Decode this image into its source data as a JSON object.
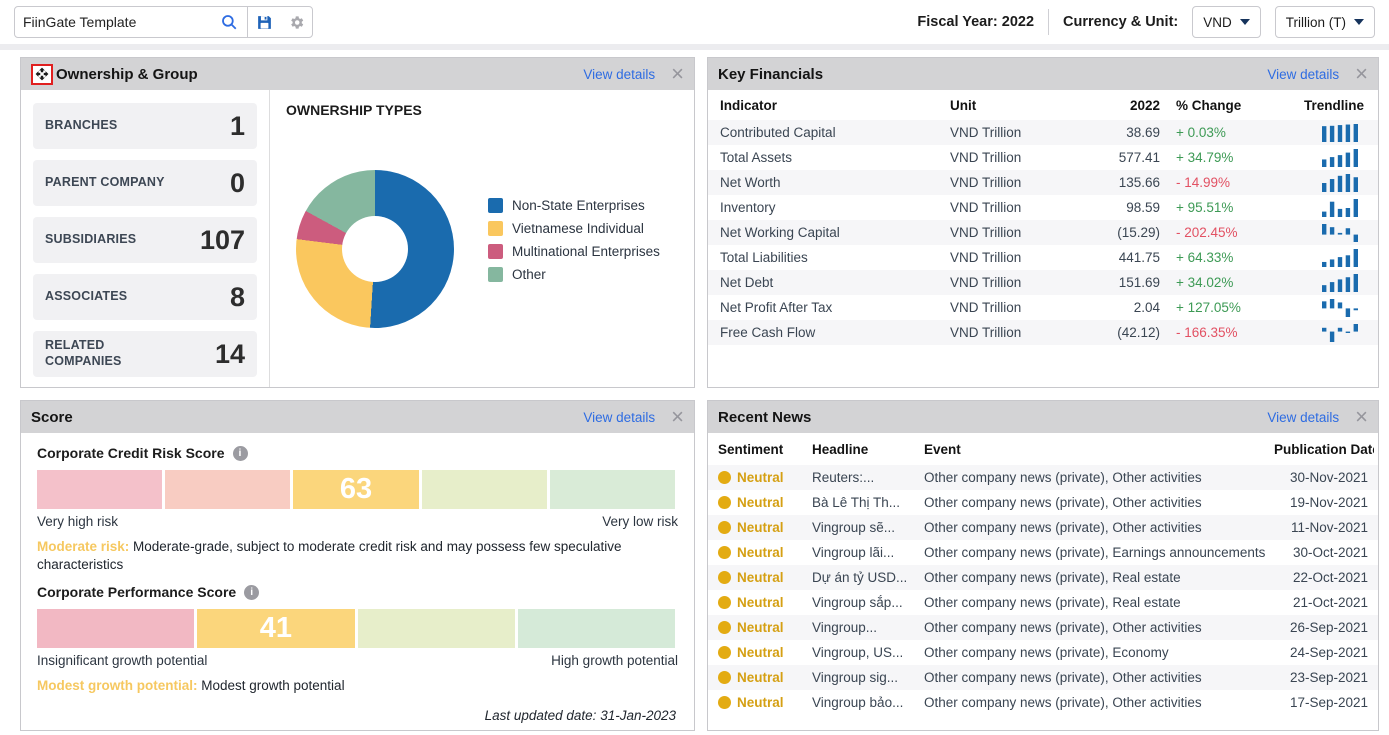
{
  "toolbar": {
    "template_name": "FiinGate Template",
    "fiscal_year_label": "Fiscal Year: 2022",
    "currency_unit_label": "Currency & Unit:",
    "currency_value": "VND",
    "unit_value": "Trillion (T)"
  },
  "colors": {
    "accent_blue": "#2e6ce2",
    "spark_blue": "#1a6bae",
    "positive": "#3d9a55",
    "negative": "#e25163",
    "sentiment_neutral": "#d5a013",
    "panel_header_bg": "#d3d3d5",
    "highlight_box_red": "#e01f1f"
  },
  "ownership": {
    "title": "Ownership & Group",
    "view_details": "View details",
    "chart_title": "OWNERSHIP TYPES",
    "stats": [
      {
        "label": "BRANCHES",
        "value": "1"
      },
      {
        "label": "PARENT COMPANY",
        "value": "0"
      },
      {
        "label": "SUBSIDIARIES",
        "value": "107"
      },
      {
        "label": "ASSOCIATES",
        "value": "8"
      },
      {
        "label": "RELATED COMPANIES",
        "value": "14"
      }
    ]
  },
  "chart_data": [
    {
      "name": "ownership-types-donut",
      "type": "pie",
      "donut": true,
      "title": "OWNERSHIP TYPES",
      "labels": [
        "Non-State Enterprises",
        "Vietnamese Individual",
        "Multinational Enterprises",
        "Other"
      ],
      "values": [
        51,
        26,
        6,
        17
      ],
      "colors": [
        "#1a6bae",
        "#fac75e",
        "#cc5c7e",
        "#85b79f"
      ],
      "legend_position": "right"
    },
    {
      "name": "corporate-credit-risk-gauge",
      "type": "bar",
      "value": 63,
      "range": [
        0,
        100
      ],
      "value_segment_index": 2,
      "segment_widths_pct": [
        20,
        20,
        20,
        20,
        20
      ],
      "segment_colors": [
        "#f4c1ca",
        "#f8ccc2",
        "#fbd67c",
        "#e7eeca",
        "#d9ebd7"
      ],
      "left_label": "Very high risk",
      "right_label": "Very low risk"
    },
    {
      "name": "corporate-performance-gauge",
      "type": "bar",
      "value": 41,
      "range": [
        0,
        100
      ],
      "value_segment_index": 1,
      "segment_widths_pct": [
        25,
        25,
        25,
        25
      ],
      "segment_colors": [
        "#f2b8c3",
        "#fbd67c",
        "#e7eeca",
        "#d5ead8"
      ],
      "left_label": "Insignificant growth potential",
      "right_label": "High growth potential"
    }
  ],
  "key_financials": {
    "title": "Key Financials",
    "view_details": "View details",
    "columns": [
      "Indicator",
      "Unit",
      "2022",
      "% Change",
      "Trendline"
    ],
    "rows": [
      {
        "indicator": "Contributed Capital",
        "unit": "VND Trillion",
        "value": "38.69",
        "change": "+ 0.03%",
        "trend": [
          0.88,
          0.9,
          0.94,
          0.97,
          1
        ]
      },
      {
        "indicator": "Total Assets",
        "unit": "VND Trillion",
        "value": "577.41",
        "change": "+ 34.79%",
        "trend": [
          0.42,
          0.55,
          0.66,
          0.8,
          1
        ]
      },
      {
        "indicator": "Net Worth",
        "unit": "VND Trillion",
        "value": "135.66",
        "change": "- 14.99%",
        "trend": [
          0.5,
          0.72,
          0.9,
          1,
          0.82
        ]
      },
      {
        "indicator": "Inventory",
        "unit": "VND Trillion",
        "value": "98.59",
        "change": "+ 95.51%",
        "trend": [
          0.3,
          0.85,
          0.45,
          0.5,
          1
        ]
      },
      {
        "indicator": "Net Working Capital",
        "unit": "VND Trillion",
        "value": "(15.29)",
        "change": "- 202.45%",
        "trend": [
          0.5,
          0.35,
          0.08,
          0.3,
          -0.35
        ]
      },
      {
        "indicator": "Total Liabilities",
        "unit": "VND Trillion",
        "value": "441.75",
        "change": "+ 64.33%",
        "trend": [
          0.28,
          0.42,
          0.55,
          0.65,
          1
        ]
      },
      {
        "indicator": "Net Debt",
        "unit": "VND Trillion",
        "value": "151.69",
        "change": "+ 34.02%",
        "trend": [
          0.38,
          0.55,
          0.7,
          0.82,
          1
        ]
      },
      {
        "indicator": "Net Profit After Tax",
        "unit": "VND Trillion",
        "value": "2.04",
        "change": "+ 127.05%",
        "trend": [
          0.45,
          0.6,
          0.38,
          -0.55,
          -0.12
        ]
      },
      {
        "indicator": "Free Cash Flow",
        "unit": "VND Trillion",
        "value": "(42.12)",
        "change": "- 166.35%",
        "trend": [
          0.2,
          -0.55,
          0.2,
          -0.05,
          0.4
        ]
      }
    ]
  },
  "score": {
    "title": "Score",
    "view_details": "View details",
    "credit_label": "Corporate Credit Risk Score",
    "credit_note_title": "Moderate risk:",
    "credit_note_body": " Moderate-grade, subject to moderate credit risk and may possess few speculative characteristics",
    "performance_label": "Corporate Performance Score",
    "perf_note_title": "Modest growth potential:",
    "perf_note_body": " Modest growth potential",
    "last_updated": "Last updated date: 31-Jan-2023"
  },
  "recent_news": {
    "title": "Recent News",
    "view_details": "View details",
    "columns": [
      "Sentiment",
      "Headline",
      "Event",
      "Publication Date"
    ],
    "rows": [
      {
        "sentiment": "Neutral",
        "headline": "Reuters:...",
        "event": "Other company news (private), Other activities",
        "date": "30-Nov-2021"
      },
      {
        "sentiment": "Neutral",
        "headline": "Bà Lê Thị Th...",
        "event": "Other company news (private), Other activities",
        "date": "19-Nov-2021"
      },
      {
        "sentiment": "Neutral",
        "headline": "Vingroup sẽ...",
        "event": "Other company news (private), Other activities",
        "date": "11-Nov-2021"
      },
      {
        "sentiment": "Neutral",
        "headline": "Vingroup lãi...",
        "event": "Other company news (private), Earnings announcements",
        "date": "30-Oct-2021"
      },
      {
        "sentiment": "Neutral",
        "headline": "Dự án tỷ USD...",
        "event": "Other company news (private), Real estate",
        "date": "22-Oct-2021"
      },
      {
        "sentiment": "Neutral",
        "headline": "Vingroup sắp...",
        "event": "Other company news (private), Real estate",
        "date": "21-Oct-2021"
      },
      {
        "sentiment": "Neutral",
        "headline": "Vingroup...",
        "event": "Other company news (private), Other activities",
        "date": "26-Sep-2021"
      },
      {
        "sentiment": "Neutral",
        "headline": "Vingroup, US...",
        "event": "Other company news (private), Economy",
        "date": "24-Sep-2021"
      },
      {
        "sentiment": "Neutral",
        "headline": "Vingroup sig...",
        "event": "Other company news (private), Other activities",
        "date": "23-Sep-2021"
      },
      {
        "sentiment": "Neutral",
        "headline": "Vingroup bảo...",
        "event": "Other company news (private), Other activities",
        "date": "17-Sep-2021"
      }
    ]
  }
}
